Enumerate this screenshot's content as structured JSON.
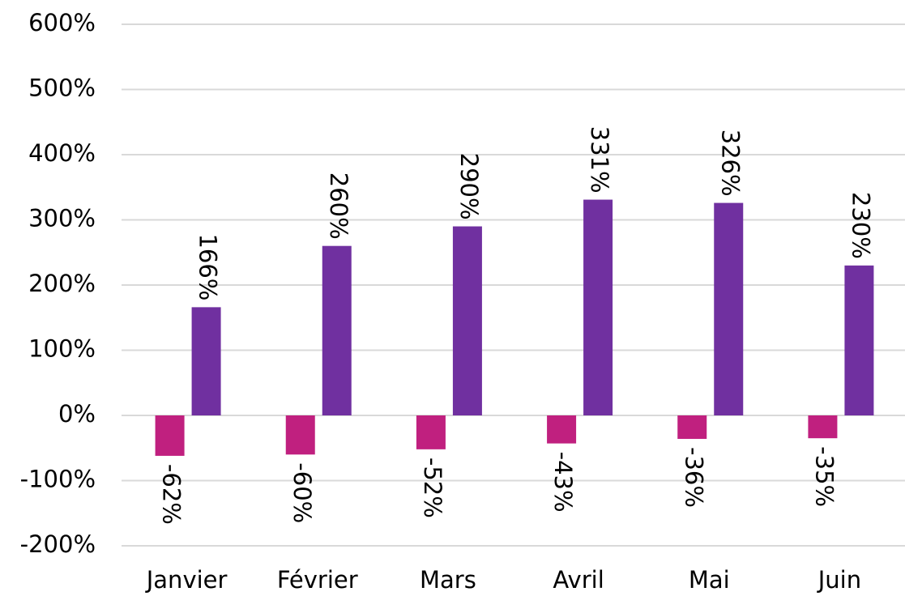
{
  "chart_data": {
    "type": "bar",
    "categories": [
      "Janvier",
      "Février",
      "Mars",
      "Avril",
      "Mai",
      "Juin"
    ],
    "series": [
      {
        "color": "#c0207f",
        "values": [
          -62,
          -60,
          -52,
          -43,
          -36,
          -35
        ],
        "value_labels": [
          "-62%",
          "-60%",
          "-52%",
          "-43%",
          "-36%",
          "-35%"
        ]
      },
      {
        "color": "#7030a0",
        "values": [
          166,
          260,
          290,
          331,
          326,
          230
        ],
        "value_labels": [
          "166%",
          "260%",
          "290%",
          "331%",
          "326%",
          "230%"
        ]
      }
    ],
    "ylim": [
      -200,
      600
    ],
    "yticks": [
      {
        "value": -200,
        "label": "-200%"
      },
      {
        "value": -100,
        "label": "-100%"
      },
      {
        "value": 0,
        "label": "0%"
      },
      {
        "value": 100,
        "label": "100%"
      },
      {
        "value": 200,
        "label": "200%"
      },
      {
        "value": 300,
        "label": "300%"
      },
      {
        "value": 400,
        "label": "400%"
      },
      {
        "value": 500,
        "label": "500%"
      },
      {
        "value": 600,
        "label": "600%"
      }
    ],
    "grid": true
  }
}
